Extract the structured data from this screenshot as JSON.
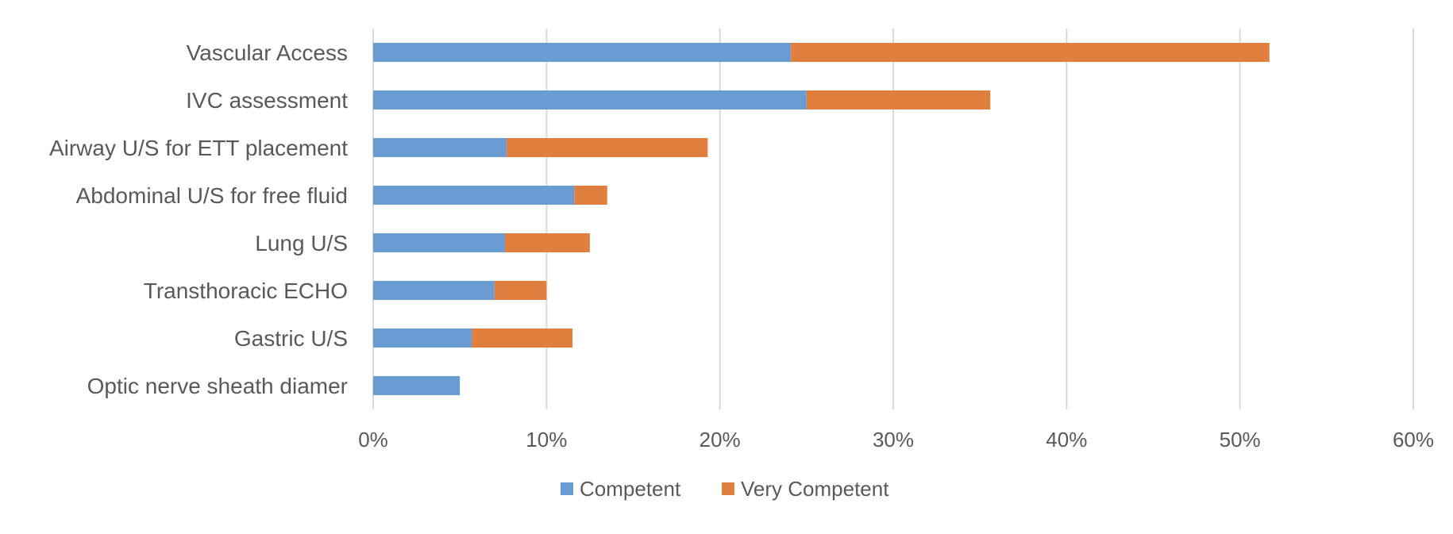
{
  "chart_data": {
    "type": "bar",
    "orientation": "horizontal",
    "stacked": true,
    "categories": [
      "Vascular Access",
      "IVC assessment",
      "Airway U/S for ETT placement",
      "Abdominal U/S for free fluid",
      "Lung U/S",
      "Transthoracic ECHO",
      "Gastric U/S",
      "Optic nerve sheath diamer"
    ],
    "series": [
      {
        "name": "Competent",
        "color": "#6a9bd2",
        "values": [
          24.1,
          25.0,
          7.7,
          11.6,
          7.6,
          7.0,
          5.7,
          5.0
        ]
      },
      {
        "name": "Very Competent",
        "color": "#e07f3e",
        "values": [
          27.6,
          10.6,
          11.6,
          1.9,
          4.9,
          3.0,
          5.8,
          0
        ]
      }
    ],
    "xlim": [
      0,
      60
    ],
    "x_ticks": [
      0,
      10,
      20,
      30,
      40,
      50,
      60
    ],
    "x_tick_labels": [
      "0%",
      "10%",
      "20%",
      "30%",
      "40%",
      "50%",
      "60%"
    ],
    "grid": "vertical",
    "legend_position": "bottom",
    "gridline_color": "#d9d9d9",
    "text_color": "#595959"
  }
}
